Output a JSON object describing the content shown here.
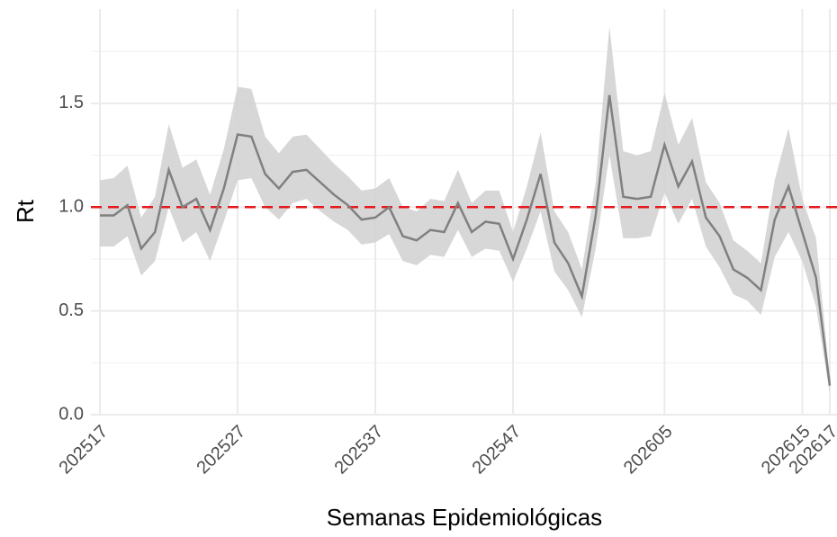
{
  "chart_data": {
    "type": "line",
    "x_label": "Semanas Epidemiológicas",
    "y_label": "Rt",
    "categories": [
      "202517",
      null,
      null,
      null,
      null,
      null,
      null,
      null,
      null,
      null,
      "202527",
      null,
      null,
      null,
      null,
      null,
      null,
      null,
      null,
      null,
      "202537",
      null,
      null,
      null,
      null,
      null,
      null,
      null,
      null,
      null,
      "202547",
      null,
      null,
      null,
      null,
      null,
      null,
      null,
      null,
      null,
      null,
      "202605",
      null,
      null,
      null,
      null,
      null,
      null,
      null,
      null,
      null,
      "202615",
      null,
      "202617"
    ],
    "values": [
      0.96,
      0.96,
      1.01,
      0.8,
      0.88,
      1.18,
      1.0,
      1.04,
      0.89,
      1.09,
      1.35,
      1.34,
      1.16,
      1.09,
      1.17,
      1.18,
      1.12,
      1.06,
      1.01,
      0.94,
      0.95,
      1.0,
      0.86,
      0.84,
      0.89,
      0.88,
      1.02,
      0.88,
      0.93,
      0.92,
      0.75,
      0.94,
      1.16,
      0.83,
      0.73,
      0.57,
      0.96,
      1.54,
      1.05,
      1.04,
      1.05,
      1.3,
      1.1,
      1.22,
      0.95,
      0.86,
      0.7,
      0.66,
      0.6,
      0.94,
      1.1,
      0.88,
      0.66,
      0.14
    ],
    "lower": [
      0.81,
      0.81,
      0.86,
      0.67,
      0.74,
      1.0,
      0.83,
      0.88,
      0.74,
      0.93,
      1.13,
      1.14,
      1.0,
      0.94,
      1.02,
      1.04,
      0.98,
      0.93,
      0.89,
      0.82,
      0.83,
      0.87,
      0.74,
      0.72,
      0.77,
      0.76,
      0.89,
      0.76,
      0.8,
      0.79,
      0.64,
      0.8,
      0.98,
      0.69,
      0.6,
      0.47,
      0.8,
      1.25,
      0.85,
      0.85,
      0.86,
      1.07,
      0.92,
      1.04,
      0.81,
      0.71,
      0.58,
      0.55,
      0.48,
      0.76,
      0.88,
      0.74,
      0.52,
      0.1
    ],
    "upper": [
      1.13,
      1.14,
      1.2,
      0.95,
      1.05,
      1.4,
      1.19,
      1.23,
      1.06,
      1.28,
      1.58,
      1.57,
      1.34,
      1.26,
      1.34,
      1.35,
      1.28,
      1.21,
      1.15,
      1.08,
      1.09,
      1.14,
      1.0,
      0.98,
      1.04,
      1.03,
      1.18,
      1.02,
      1.08,
      1.08,
      0.88,
      1.1,
      1.36,
      0.98,
      0.88,
      0.7,
      1.12,
      1.87,
      1.27,
      1.25,
      1.27,
      1.55,
      1.3,
      1.43,
      1.12,
      1.02,
      0.84,
      0.79,
      0.73,
      1.13,
      1.38,
      1.04,
      0.85,
      0.18
    ],
    "color": "#808080",
    "band_color": "#d3d3d3",
    "hline": 1.0,
    "hline_color": "#e41a1c",
    "ylim": [
      0,
      1.955
    ],
    "yticks": [
      {
        "value": 0,
        "label": "0.0"
      },
      0.5,
      {
        "value": 1,
        "label": "1.0"
      },
      1.5
    ],
    "yminor": [
      0.25,
      0.75,
      1.25,
      1.75
    ],
    "grid": true
  }
}
